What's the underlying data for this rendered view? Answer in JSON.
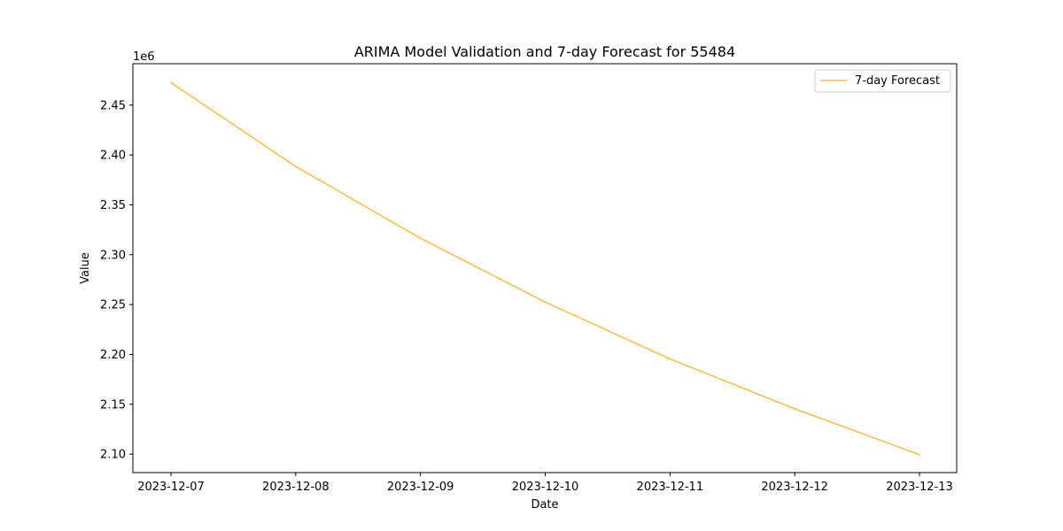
{
  "chart_data": {
    "type": "line",
    "title": "ARIMA Model Validation and 7-day Forecast for 55484",
    "xlabel": "Date",
    "ylabel": "Value",
    "y_offset_label": "1e6",
    "x": [
      "2023-12-07",
      "2023-12-08",
      "2023-12-09",
      "2023-12-10",
      "2023-12-11",
      "2023-12-12",
      "2023-12-13"
    ],
    "y_ticks": [
      "2.10",
      "2.15",
      "2.20",
      "2.25",
      "2.30",
      "2.35",
      "2.40",
      "2.45"
    ],
    "ylim": [
      2.0815,
      2.4915
    ],
    "series": [
      {
        "name": "7-day Forecast",
        "color": "#ffa500",
        "values": [
          2.4725,
          2.3885,
          2.3165,
          2.2525,
          2.1955,
          2.1455,
          2.0995
        ]
      }
    ],
    "legend": {
      "position": "top-right"
    },
    "grid": false
  }
}
